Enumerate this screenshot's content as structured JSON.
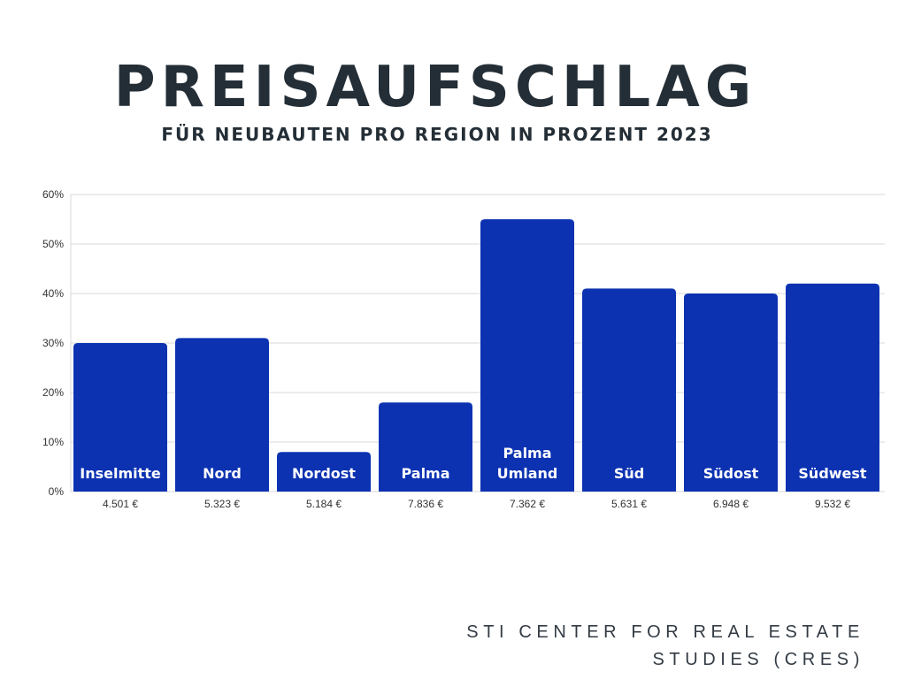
{
  "title": "PREISAUFSCHLAG",
  "subtitle": "FÜR NEUBAUTEN PRO REGION IN PROZENT 2023",
  "source": {
    "line1": "STI CENTER FOR REAL ESTATE",
    "line2": "STUDIES (CRES)"
  },
  "colors": {
    "bar": "#0c32b2",
    "grid": "#d9d9d9",
    "title": "#242e36",
    "axis_text": "#333333",
    "bar_label": "#ffffff"
  },
  "chart_data": {
    "type": "bar",
    "title": "PREISAUFSCHLAG",
    "subtitle": "FÜR NEUBAUTEN PRO REGION IN PROZENT 2023",
    "categories": [
      [
        "Inselmitte"
      ],
      [
        "Nord"
      ],
      [
        "Nordost"
      ],
      [
        "Palma"
      ],
      [
        "Palma",
        "Umland"
      ],
      [
        "Süd"
      ],
      [
        "Südost"
      ],
      [
        "Südwest"
      ]
    ],
    "values": [
      30,
      31,
      8,
      18,
      55,
      41,
      40,
      42
    ],
    "prices": [
      "4.501 €",
      "5.323 €",
      "5.184 €",
      "7.836 €",
      "7.362 €",
      "5.631 €",
      "6.948 €",
      "9.532 €"
    ],
    "yticks": [
      "0%",
      "10%",
      "20%",
      "30%",
      "40%",
      "50%",
      "60%"
    ],
    "ylim": [
      0,
      60
    ],
    "xlabel": "",
    "ylabel": "",
    "grid": true
  }
}
